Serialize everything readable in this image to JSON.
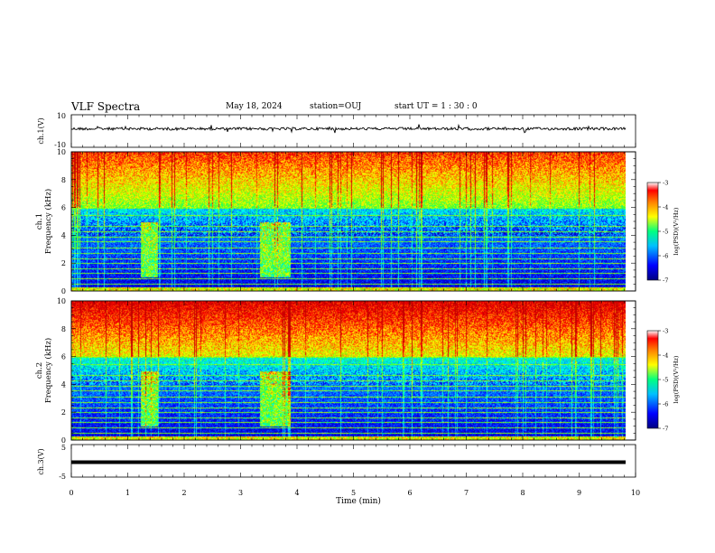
{
  "header": {
    "title": "VLF Spectra",
    "date": "May 18, 2024",
    "station": "station=OUJ",
    "start_ut": "start UT =  1 : 30 : 0"
  },
  "chart_data": [
    {
      "type": "line",
      "name": "ch1-waveform",
      "ylabel": "ch.1(V)",
      "ylim": [
        -10,
        10
      ],
      "yticks": [
        "10",
        "-10"
      ],
      "xlim": [
        0,
        10
      ]
    },
    {
      "type": "heatmap",
      "name": "ch1-spectrogram",
      "ylabel": "ch.1\nFrequency (kHz)",
      "ylim": [
        0,
        10
      ],
      "yticks": [
        "0",
        "2",
        "4",
        "6",
        "8",
        "10"
      ],
      "xlim": [
        0,
        10
      ],
      "colorbar": {
        "label": "log(PSD)(V²/Hz)",
        "range": [
          -7,
          -3
        ],
        "ticks": [
          "-3",
          "-4",
          "-5",
          "-6",
          "-7"
        ]
      }
    },
    {
      "type": "heatmap",
      "name": "ch2-spectrogram",
      "ylabel": "ch.2\nFrequency (kHz)",
      "ylim": [
        0,
        10
      ],
      "yticks": [
        "0",
        "2",
        "4",
        "6",
        "8",
        "10"
      ],
      "xlim": [
        0,
        10
      ],
      "colorbar": {
        "label": "log(PSD)(V²/Hz)",
        "range": [
          -7,
          -3
        ],
        "ticks": [
          "-3",
          "-4",
          "-5",
          "-6",
          "-7"
        ]
      }
    },
    {
      "type": "line",
      "name": "ch3-waveform",
      "ylabel": "ch.3(V)",
      "ylim": [
        -5,
        5
      ],
      "yticks": [
        "5",
        "-5"
      ],
      "xlim": [
        0,
        10
      ],
      "xlabel": "Time (min)",
      "xticks": [
        "0",
        "1",
        "2",
        "3",
        "4",
        "5",
        "6",
        "7",
        "8",
        "9",
        "10"
      ]
    }
  ],
  "colormap": [
    "#00008b",
    "#0000ff",
    "#00a0ff",
    "#00ffff",
    "#00ff80",
    "#80ff00",
    "#ffff00",
    "#ff8000",
    "#ff0000",
    "#c00000",
    "#ffffff"
  ]
}
